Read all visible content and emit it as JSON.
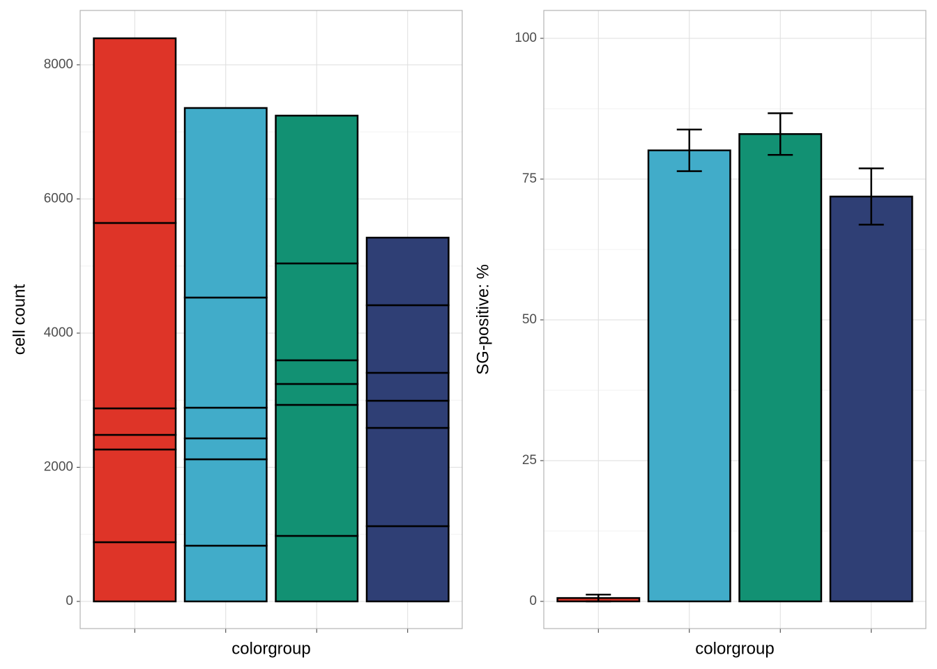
{
  "chart_data": [
    {
      "type": "stacked_segments",
      "xlabel": "colorgroup",
      "ylabel": "cell count",
      "categories": [
        null,
        null,
        null,
        null
      ],
      "colors": [
        "#de3428",
        "#41acc9",
        "#129173",
        "#2f3f75"
      ],
      "values": [
        [
          883,
          1382,
          218,
          395,
          2764,
          2753
        ],
        [
          831,
          1288,
          312,
          457,
          1642,
          2826
        ],
        [
          977,
          1953,
          312,
          353,
          1444,
          2203
        ],
        [
          1122,
          1465,
          405,
          416,
          1008,
          1007
        ]
      ],
      "ylim": [
        -405,
        8810
      ],
      "yticks": [
        0,
        2000,
        4000,
        6000,
        8000
      ],
      "grid": true,
      "minor_grid": true
    },
    {
      "type": "bar_error",
      "xlabel": "colorgroup",
      "ylabel": "SG-positive: %",
      "categories": [
        null,
        null,
        null,
        null
      ],
      "colors": [
        "#de3428",
        "#41acc9",
        "#129173",
        "#2f3f75"
      ],
      "values": [
        0.6,
        80.1,
        83.0,
        71.9
      ],
      "errors": [
        0.6,
        3.7,
        3.7,
        5.0
      ],
      "ylim": [
        -4.83,
        104.95
      ],
      "yticks": [
        0,
        25,
        50,
        75,
        100
      ],
      "grid": true,
      "minor_grid": true
    }
  ]
}
